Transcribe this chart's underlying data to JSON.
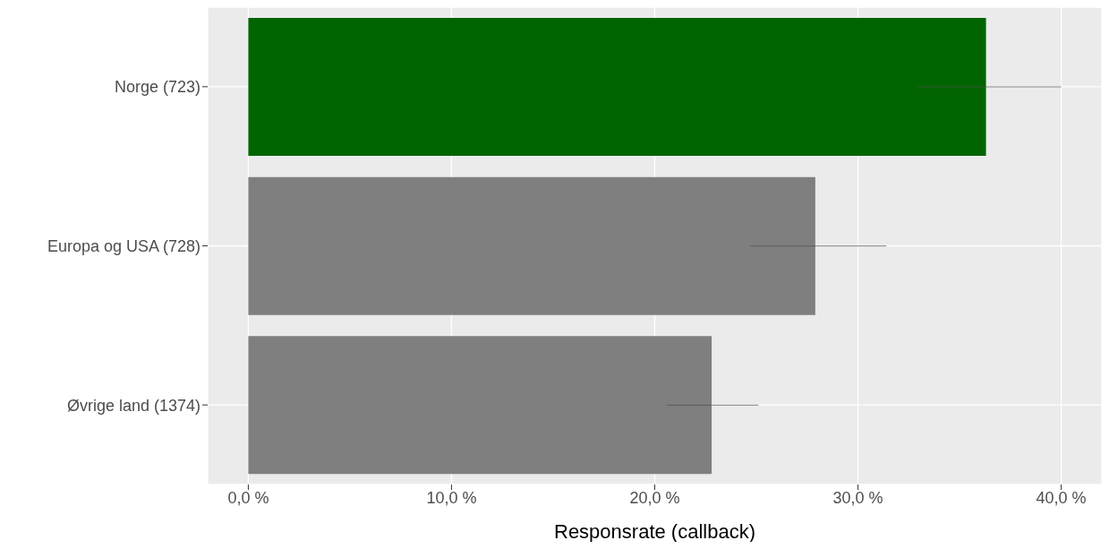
{
  "chart_data": {
    "type": "bar",
    "orientation": "horizontal",
    "xlabel": "Responsrate (callback)",
    "categories": [
      "Norge (723)",
      "Europa og USA (728)",
      "Øvrige land (1374)"
    ],
    "values": [
      36.3,
      27.9,
      22.8
    ],
    "colors": [
      "#006400",
      "#7f7f7f",
      "#7f7f7f"
    ],
    "errors": [
      [
        32.9,
        40.0
      ],
      [
        24.7,
        31.4
      ],
      [
        20.6,
        25.1
      ]
    ],
    "xlim": [
      -2,
      42
    ],
    "xticks": [
      {
        "value": 0,
        "label": "0,0 %"
      },
      {
        "value": 10,
        "label": "10,0 %"
      },
      {
        "value": 20,
        "label": "20,0 %"
      },
      {
        "value": 30,
        "label": "30,0 %"
      },
      {
        "value": 40,
        "label": "40,0 %"
      }
    ],
    "grid": true,
    "legend": false
  }
}
